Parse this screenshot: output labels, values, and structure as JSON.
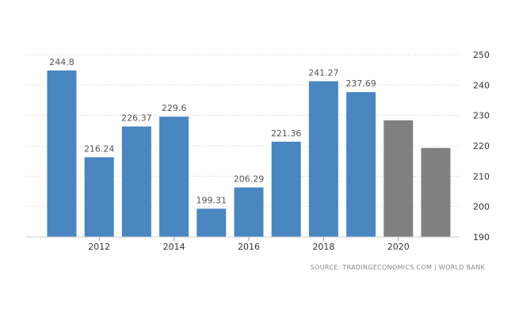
{
  "chart_data": {
    "type": "bar",
    "x": [
      2011,
      2012,
      2013,
      2014,
      2015,
      2016,
      2017,
      2018,
      2019,
      2020,
      2021
    ],
    "values": [
      244.8,
      216.24,
      226.37,
      229.6,
      199.31,
      206.29,
      221.36,
      241.27,
      237.69,
      228.4,
      219.3
    ],
    "data_labels": [
      "244.8",
      "216.24",
      "226.37",
      "229.6",
      "199.31",
      "206.29",
      "221.36",
      "241.27",
      "237.69",
      "",
      ""
    ],
    "bar_kind": [
      "actual",
      "actual",
      "actual",
      "actual",
      "actual",
      "actual",
      "actual",
      "actual",
      "actual",
      "forecast",
      "forecast"
    ],
    "x_tick_labels": [
      "2012",
      "2014",
      "2016",
      "2018",
      "2020"
    ],
    "y_ticks": [
      190,
      200,
      210,
      220,
      230,
      240,
      250
    ],
    "ylim": [
      190,
      250
    ],
    "y_axis_side": "right",
    "grid": "horizontal-dotted",
    "title": "",
    "xlabel": "",
    "ylabel": "",
    "colors": {
      "actual": "#4a86c0",
      "forecast": "#808080"
    }
  },
  "source": "SOURCE: TRADINGECONOMICS.COM | WORLD BANK"
}
